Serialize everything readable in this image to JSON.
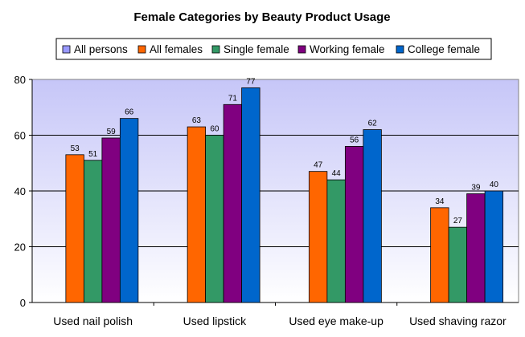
{
  "chart_data": {
    "type": "bar",
    "title": "Female Categories by Beauty Product Usage",
    "xlabel": "",
    "ylabel": "",
    "ylim": [
      0,
      80
    ],
    "yticks": [
      "0",
      "20",
      "40",
      "60",
      "80"
    ],
    "grid": true,
    "legend_position": "top",
    "categories": [
      "Used nail polish",
      "Used lipstick",
      "Used eye make-up",
      "Used shaving razor"
    ],
    "series": [
      {
        "name": "All persons",
        "color": "#9999ff",
        "values": [
          null,
          null,
          null,
          null
        ]
      },
      {
        "name": "All females",
        "color": "#ff6600",
        "values": [
          53,
          63,
          47,
          34
        ]
      },
      {
        "name": "Single female",
        "color": "#339966",
        "values": [
          51,
          60,
          44,
          27
        ]
      },
      {
        "name": "Working female",
        "color": "#800080",
        "values": [
          59,
          71,
          56,
          39
        ]
      },
      {
        "name": "College female",
        "color": "#0066cc",
        "values": [
          66,
          77,
          62,
          40
        ]
      }
    ]
  }
}
